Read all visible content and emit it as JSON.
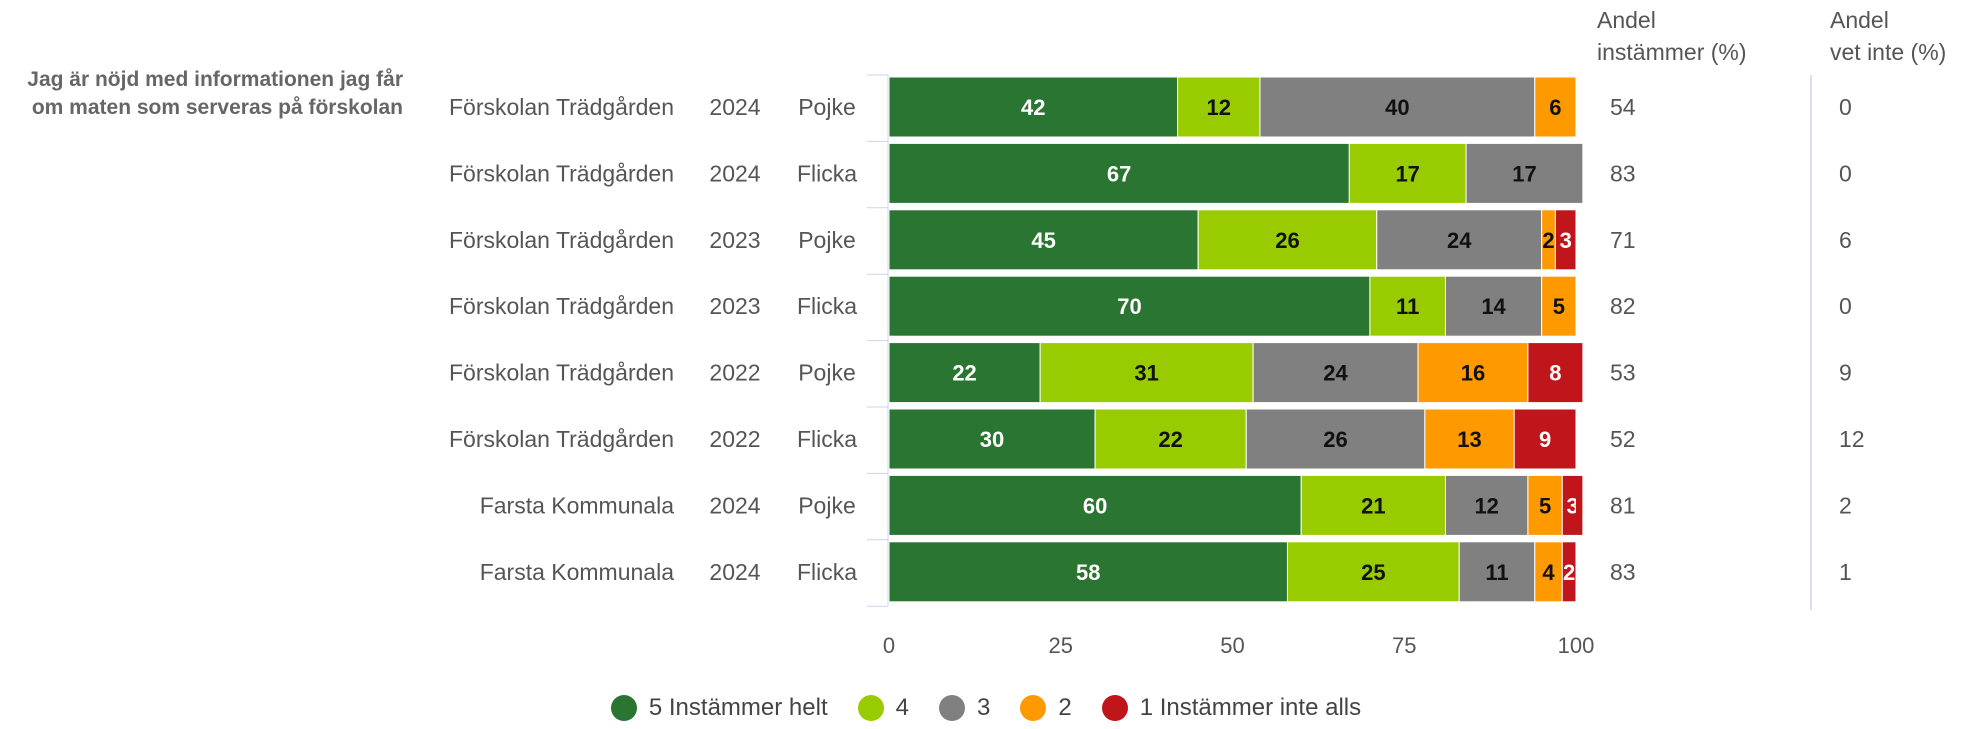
{
  "chart_data": {
    "type": "bar",
    "orientation": "horizontal",
    "stacked": true,
    "title": "Jag är nöjd med informationen jag får om maten som serveras på förskolan",
    "categories": [
      {
        "unit": "Förskolan Trädgården",
        "year": "2024",
        "gender": "Pojke"
      },
      {
        "unit": "Förskolan Trädgården",
        "year": "2024",
        "gender": "Flicka"
      },
      {
        "unit": "Förskolan Trädgården",
        "year": "2023",
        "gender": "Pojke"
      },
      {
        "unit": "Förskolan Trädgården",
        "year": "2023",
        "gender": "Flicka"
      },
      {
        "unit": "Förskolan Trädgården",
        "year": "2022",
        "gender": "Pojke"
      },
      {
        "unit": "Förskolan Trädgården",
        "year": "2022",
        "gender": "Flicka"
      },
      {
        "unit": "Farsta Kommunala",
        "year": "2024",
        "gender": "Pojke"
      },
      {
        "unit": "Farsta Kommunala",
        "year": "2024",
        "gender": "Flicka"
      }
    ],
    "series": [
      {
        "name": "5 Instämmer helt",
        "color": "#2a7531",
        "label_color": "#ffffff",
        "values": [
          42,
          67,
          45,
          70,
          22,
          30,
          60,
          58
        ]
      },
      {
        "name": "4",
        "color": "#99cc00",
        "label_color": "#111111",
        "values": [
          12,
          17,
          26,
          11,
          31,
          22,
          21,
          25
        ]
      },
      {
        "name": "3",
        "color": "#808080",
        "label_color": "#111111",
        "values": [
          40,
          17,
          24,
          14,
          24,
          26,
          12,
          11
        ]
      },
      {
        "name": "2",
        "color": "#ff9900",
        "label_color": "#111111",
        "values": [
          6,
          0,
          2,
          5,
          16,
          13,
          5,
          4
        ]
      },
      {
        "name": "1 Instämmer inte alls",
        "color": "#c0151b",
        "label_color": "#ffffff",
        "values": [
          0,
          0,
          3,
          0,
          8,
          9,
          3,
          2
        ]
      }
    ],
    "segment_labels": [
      [
        "42",
        "12",
        "40",
        "6",
        "0"
      ],
      [
        "67",
        "17",
        "17",
        "0",
        ""
      ],
      [
        "45",
        "26",
        "24",
        "2",
        "3"
      ],
      [
        "70",
        "11",
        "14",
        "5",
        "0"
      ],
      [
        "22",
        "31",
        "24",
        "16",
        "8"
      ],
      [
        "30",
        "22",
        "26",
        "13",
        "9"
      ],
      [
        "60",
        "21",
        "12",
        "5",
        "3"
      ],
      [
        "58",
        "25",
        "11",
        "4",
        "2"
      ]
    ],
    "x_ticks": [
      "0",
      "25",
      "50",
      "75",
      "100"
    ],
    "xlim": [
      0,
      100
    ],
    "andel_instammer": [
      "54",
      "83",
      "71",
      "82",
      "53",
      "52",
      "81",
      "83"
    ],
    "andel_vet_inte": [
      "0",
      "0",
      "6",
      "0",
      "9",
      "12",
      "2",
      "1"
    ],
    "col_instammer_header": [
      "Andel",
      "instämmer (%)"
    ],
    "col_vet_inte_header": [
      "Andel",
      "vet inte (%)"
    ],
    "legend_position": "bottom"
  }
}
